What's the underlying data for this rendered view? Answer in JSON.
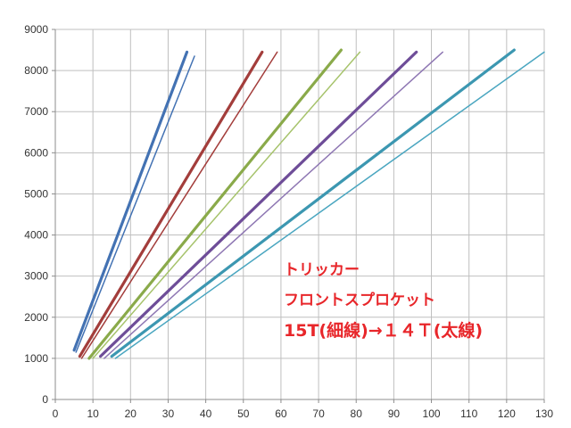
{
  "chart_data": {
    "type": "line",
    "title": "",
    "xlabel": "",
    "ylabel": "",
    "xlim": [
      0,
      130
    ],
    "ylim": [
      0,
      9000
    ],
    "x_ticks": [
      0,
      10,
      20,
      30,
      40,
      50,
      60,
      70,
      80,
      90,
      100,
      110,
      120,
      130
    ],
    "y_ticks": [
      0,
      1000,
      2000,
      3000,
      4000,
      5000,
      6000,
      7000,
      8000,
      9000
    ],
    "grid": true,
    "legend": "none",
    "annotations": [
      "トリッカー",
      "フロントスプロケット",
      "15T(細線)→１４Ｔ(太線)"
    ],
    "series": [
      {
        "color": "#4372b3",
        "width": "thick",
        "points": [
          [
            5,
            1200
          ],
          [
            35,
            8450
          ]
        ]
      },
      {
        "color": "#4372b3",
        "width": "thin",
        "points": [
          [
            5.5,
            1150
          ],
          [
            37,
            8350
          ]
        ]
      },
      {
        "color": "#a33d3b",
        "width": "thick",
        "points": [
          [
            6.5,
            1050
          ],
          [
            55,
            8450
          ]
        ]
      },
      {
        "color": "#a33d3b",
        "width": "thin",
        "points": [
          [
            7,
            1000
          ],
          [
            59,
            8450
          ]
        ]
      },
      {
        "color": "#8aaa4a",
        "width": "thick",
        "points": [
          [
            9,
            1000
          ],
          [
            76,
            8500
          ]
        ]
      },
      {
        "color": "#a6c36b",
        "width": "thin",
        "points": [
          [
            10,
            1000
          ],
          [
            81,
            8450
          ]
        ]
      },
      {
        "color": "#6e4d98",
        "width": "thick",
        "points": [
          [
            12,
            1050
          ],
          [
            96,
            8450
          ]
        ]
      },
      {
        "color": "#8e77b3",
        "width": "thin",
        "points": [
          [
            13,
            1000
          ],
          [
            103,
            8450
          ]
        ]
      },
      {
        "color": "#3c97b1",
        "width": "thick",
        "points": [
          [
            15,
            1050
          ],
          [
            122,
            8500
          ]
        ]
      },
      {
        "color": "#4aa6c0",
        "width": "thin",
        "points": [
          [
            16,
            1000
          ],
          [
            130,
            8450
          ]
        ]
      }
    ]
  }
}
